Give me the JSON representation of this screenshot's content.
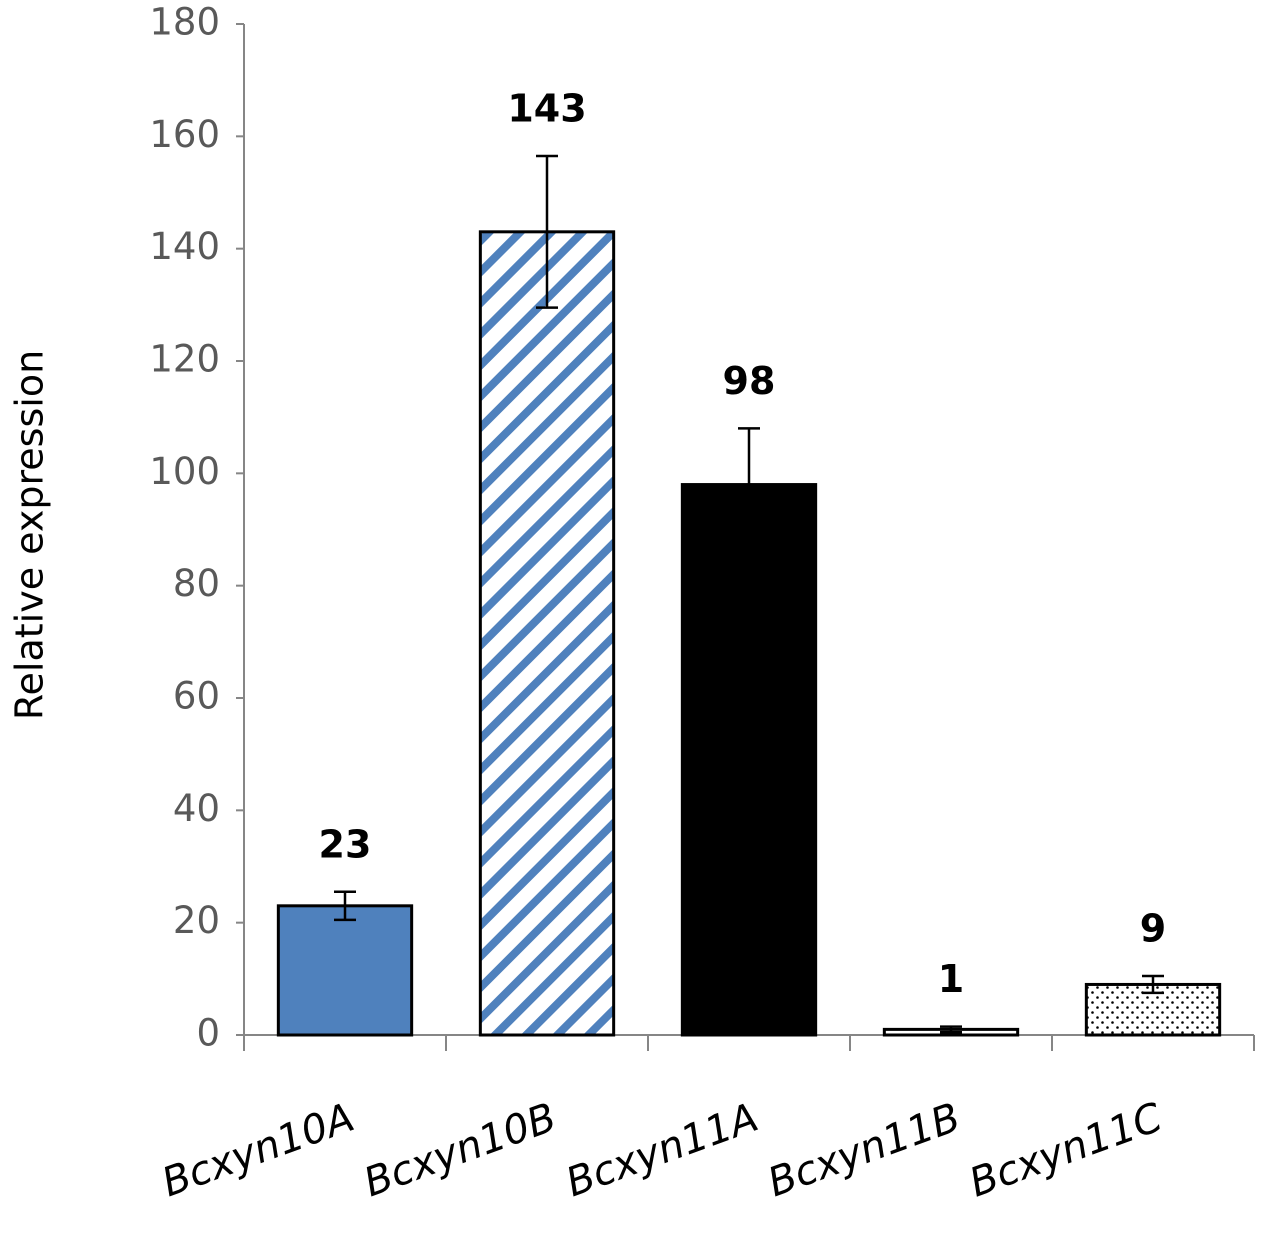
{
  "chart_data": {
    "type": "bar",
    "y_label": "Relative expression",
    "categories": [
      "Bcxyn10A",
      "Bcxyn10B",
      "Bcxyn11A",
      "Bcxyn11B",
      "Bcxyn11C"
    ],
    "values": [
      23,
      143,
      98,
      1,
      9
    ],
    "errors": [
      2.5,
      13.5,
      10,
      0.5,
      1.5
    ],
    "bar_styles": [
      {
        "color": "#4f81bd",
        "pattern": "solid"
      },
      {
        "color": "#4f81bd",
        "pattern": "hatch"
      },
      {
        "color": "#000000",
        "pattern": "solid"
      },
      {
        "color": "#ffffff",
        "pattern": "solid"
      },
      {
        "color": "#000000",
        "pattern": "dots"
      }
    ],
    "ylim": [
      0,
      180
    ],
    "yticks": [
      0,
      20,
      40,
      60,
      80,
      100,
      120,
      140,
      160,
      180
    ],
    "grid": false
  }
}
